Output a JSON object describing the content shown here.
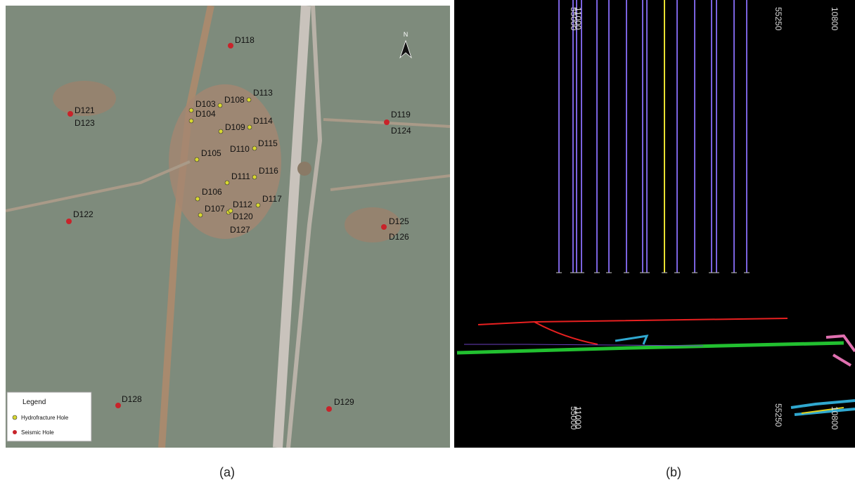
{
  "panel_a": {
    "north": "N",
    "hydrofracture_holes": [
      "D103",
      "D104",
      "D105",
      "D106",
      "D107",
      "D108",
      "D109",
      "D110",
      "D111",
      "D112",
      "D113",
      "D114",
      "D115",
      "D116",
      "D117",
      "D120",
      "D127"
    ],
    "seismic_holes": [
      "D118",
      "D121",
      "D123",
      "D119",
      "D124",
      "D122",
      "D125",
      "D126",
      "D128",
      "D129"
    ],
    "legend": {
      "title": "Legend",
      "items": [
        {
          "label": "Hydrofracture Hole",
          "color": "#d8d830"
        },
        {
          "label": "Seismic Hole",
          "color": "#c8232a"
        }
      ]
    },
    "caption": "(a)"
  },
  "panel_b": {
    "top_labels": [
      "55000",
      "11000",
      "55250",
      "10800"
    ],
    "bottom_labels": [
      "55000",
      "11000",
      "55250",
      "10800"
    ],
    "caption": "(b)"
  }
}
